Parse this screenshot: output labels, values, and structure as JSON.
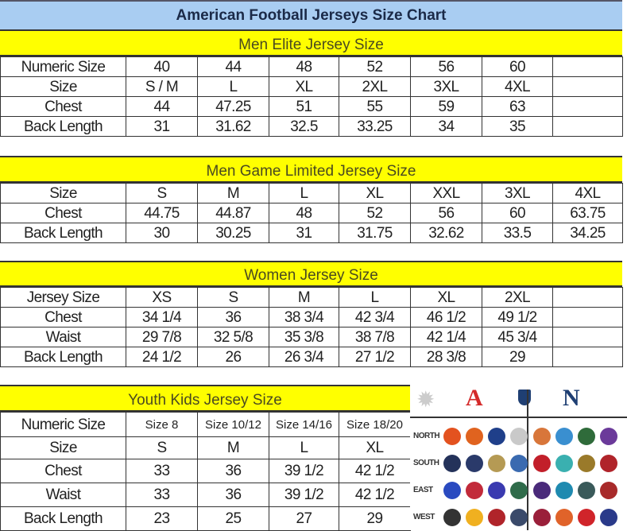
{
  "title": "American Football Jerseys Size Chart",
  "colors": {
    "title_bg": "#a9cdf2",
    "section_bg": "#ffff00",
    "afc": "#d42a2a",
    "nfc": "#1f3f73"
  },
  "sections": [
    {
      "heading": "Men Elite Jersey Size",
      "rows": [
        [
          "Numeric Size",
          "40",
          "44",
          "48",
          "52",
          "56",
          "60",
          ""
        ],
        [
          "Size",
          "S / M",
          "L",
          "XL",
          "2XL",
          "3XL",
          "4XL",
          ""
        ],
        [
          "Chest",
          "44",
          "47.25",
          "51",
          "55",
          "59",
          "63",
          ""
        ],
        [
          "Back Length",
          "31",
          "31.62",
          "32.5",
          "33.25",
          "34",
          "35",
          ""
        ]
      ]
    },
    {
      "heading": "Men Game Limited Jersey Size",
      "rows": [
        [
          "Size",
          "S",
          "M",
          "L",
          "XL",
          "XXL",
          "3XL",
          "4XL"
        ],
        [
          "Chest",
          "44.75",
          "44.87",
          "48",
          "52",
          "56",
          "60",
          "63.75"
        ],
        [
          "Back Length",
          "30",
          "30.25",
          "31",
          "31.75",
          "32.62",
          "33.5",
          "34.25"
        ]
      ]
    },
    {
      "heading": "Women Jersey Size",
      "rows": [
        [
          "Jersey Size",
          "XS",
          "S",
          "M",
          "L",
          "XL",
          "2XL",
          ""
        ],
        [
          "Chest",
          "34 1/4",
          "36",
          "38 3/4",
          "42 3/4",
          "46 1/2",
          "49 1/2",
          ""
        ],
        [
          "Waist",
          "29 7/8",
          "32 5/8",
          "35 3/8",
          "38 7/8",
          "42 1/4",
          "45 3/4",
          ""
        ],
        [
          "Back Length",
          "24 1/2",
          "26",
          "26 3/4",
          "27 1/2",
          "28 3/8",
          "29",
          ""
        ]
      ]
    },
    {
      "heading": "Youth Kids Jersey Size",
      "rows": [
        [
          "Numeric Size",
          "Size 8",
          "Size 10/12",
          "Size 14/16",
          "Size 18/20"
        ],
        [
          "Size",
          "S",
          "M",
          "L",
          "XL"
        ],
        [
          "Chest",
          "33",
          "36",
          "39 1/2",
          "42 1/2"
        ],
        [
          "Waist",
          "33",
          "36",
          "39 1/2",
          "42 1/2"
        ],
        [
          "Back Length",
          "23",
          "25",
          "27",
          "29"
        ]
      ]
    }
  ],
  "logos": {
    "afc_icon": "afc-logo-icon",
    "nfc_icon": "nfc-logo-icon",
    "nfl_icon": "nfl-shield-icon",
    "divisions": [
      {
        "label": "NORTH",
        "afc": [
          "#e3521f",
          "#e0631f",
          "#1f3f8a",
          "#c9c9c9"
        ],
        "nfc": [
          "#d8763a",
          "#3a8fd0",
          "#2f6b3a",
          "#6b3a9a"
        ]
      },
      {
        "label": "SOUTH",
        "afc": [
          "#24325a",
          "#2a3a6a",
          "#b59a54",
          "#3a6ab0"
        ],
        "nfc": [
          "#c21f2a",
          "#3ab0b0",
          "#9a7a2a",
          "#b0242a"
        ]
      },
      {
        "label": "EAST",
        "afc": [
          "#2a4ac0",
          "#c22a3a",
          "#3a3ab0",
          "#2f6b4a"
        ],
        "nfc": [
          "#4a2a7a",
          "#1f8ab0",
          "#3a5a5a",
          "#a82a2a"
        ]
      },
      {
        "label": "WEST",
        "afc": [
          "#333333",
          "#f0b020",
          "#b0242a",
          "#3a4a6a"
        ],
        "nfc": [
          "#9a1f3a",
          "#e0632a",
          "#d0242a",
          "#2a3a8a"
        ]
      }
    ]
  }
}
